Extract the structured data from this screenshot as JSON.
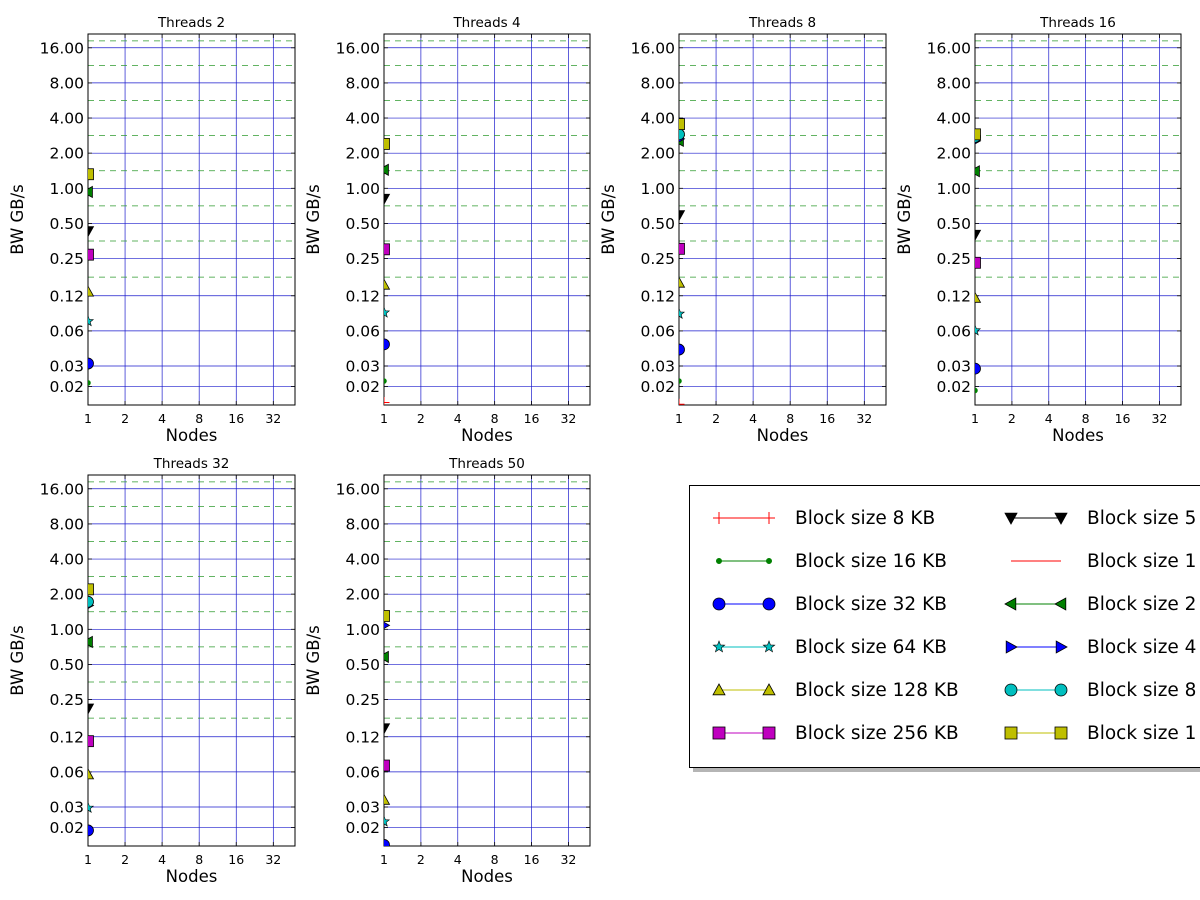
{
  "chart_data": [
    {
      "type": "scatter",
      "title": "Threads 2",
      "xlabel": "Nodes",
      "ylabel": "BW GB/s",
      "x_scale": "log2",
      "y_scale": "log2",
      "xlim": [
        1,
        48
      ],
      "ylim": [
        0.0139,
        21
      ],
      "x_ticks": [
        1,
        2,
        4,
        8,
        16,
        32
      ],
      "y_ticks": [
        0.02,
        0.03,
        0.06,
        0.12,
        0.25,
        0.5,
        1.0,
        2.0,
        4.0,
        8.0,
        16.0
      ],
      "y_tick_labels": [
        "0.02",
        "0.03",
        "0.06",
        "0.12",
        "0.25",
        "0.50",
        "1.00",
        "2.00",
        "4.00",
        "8.00",
        "16.00"
      ],
      "grid": true,
      "series": [
        {
          "id": "s16",
          "x": [
            1
          ],
          "y": [
            0.0215
          ]
        },
        {
          "id": "s32",
          "x": [
            1
          ],
          "y": [
            0.0315
          ]
        },
        {
          "id": "s64",
          "x": [
            1
          ],
          "y": [
            0.0725
          ]
        },
        {
          "id": "s128",
          "x": [
            1
          ],
          "y": [
            0.13
          ]
        },
        {
          "id": "s256",
          "x": [
            1
          ],
          "y": [
            0.27
          ]
        },
        {
          "id": "s512",
          "x": [
            1
          ],
          "y": [
            0.43
          ]
        },
        {
          "id": "s2m",
          "x": [
            1
          ],
          "y": [
            0.93
          ]
        },
        {
          "id": "s16m",
          "x": [
            1
          ],
          "y": [
            1.32
          ]
        }
      ]
    },
    {
      "type": "scatter",
      "title": "Threads 4",
      "xlabel": "Nodes",
      "ylabel": "BW GB/s",
      "x_scale": "log2",
      "y_scale": "log2",
      "xlim": [
        1,
        48
      ],
      "ylim": [
        0.0139,
        21
      ],
      "x_ticks": [
        1,
        2,
        4,
        8,
        16,
        32
      ],
      "y_ticks": [
        0.02,
        0.03,
        0.06,
        0.12,
        0.25,
        0.5,
        1.0,
        2.0,
        4.0,
        8.0,
        16.0
      ],
      "y_tick_labels": [
        "0.02",
        "0.03",
        "0.06",
        "0.12",
        "0.25",
        "0.50",
        "1.00",
        "2.00",
        "4.00",
        "8.00",
        "16.00"
      ],
      "grid": true,
      "series": [
        {
          "id": "s8",
          "x": [
            1
          ],
          "y": [
            0.0146
          ]
        },
        {
          "id": "s16",
          "x": [
            1
          ],
          "y": [
            0.0223
          ]
        },
        {
          "id": "s32",
          "x": [
            1
          ],
          "y": [
            0.046
          ]
        },
        {
          "id": "s64",
          "x": [
            1
          ],
          "y": [
            0.086
          ]
        },
        {
          "id": "s128",
          "x": [
            1
          ],
          "y": [
            0.149
          ]
        },
        {
          "id": "s256",
          "x": [
            1
          ],
          "y": [
            0.3
          ]
        },
        {
          "id": "s512",
          "x": [
            1
          ],
          "y": [
            0.815
          ]
        },
        {
          "id": "s2m",
          "x": [
            1
          ],
          "y": [
            1.44
          ]
        },
        {
          "id": "s16m",
          "x": [
            1
          ],
          "y": [
            2.4
          ]
        }
      ]
    },
    {
      "type": "scatter",
      "title": "Threads 8",
      "xlabel": "Nodes",
      "ylabel": "BW GB/s",
      "x_scale": "log2",
      "y_scale": "log2",
      "xlim": [
        1,
        48
      ],
      "ylim": [
        0.0139,
        21
      ],
      "x_ticks": [
        1,
        2,
        4,
        8,
        16,
        32
      ],
      "y_ticks": [
        0.02,
        0.03,
        0.06,
        0.12,
        0.25,
        0.5,
        1.0,
        2.0,
        4.0,
        8.0,
        16.0
      ],
      "y_tick_labels": [
        "0.02",
        "0.03",
        "0.06",
        "0.12",
        "0.25",
        "0.50",
        "1.00",
        "2.00",
        "4.00",
        "8.00",
        "16.00"
      ],
      "grid": true,
      "series": [
        {
          "id": "s8",
          "x": [
            1
          ],
          "y": [
            0.0141
          ]
        },
        {
          "id": "s16",
          "x": [
            1
          ],
          "y": [
            0.0223
          ]
        },
        {
          "id": "s32",
          "x": [
            1
          ],
          "y": [
            0.0415
          ]
        },
        {
          "id": "s64",
          "x": [
            1
          ],
          "y": [
            0.084
          ]
        },
        {
          "id": "s128",
          "x": [
            1
          ],
          "y": [
            0.155
          ]
        },
        {
          "id": "s256",
          "x": [
            1
          ],
          "y": [
            0.303
          ]
        },
        {
          "id": "s512",
          "x": [
            1
          ],
          "y": [
            0.59
          ]
        },
        {
          "id": "s2m",
          "x": [
            1
          ],
          "y": [
            2.55
          ]
        },
        {
          "id": "s4m",
          "x": [
            1
          ],
          "y": [
            2.65
          ]
        },
        {
          "id": "s8m",
          "x": [
            1
          ],
          "y": [
            2.9
          ]
        },
        {
          "id": "s16m",
          "x": [
            1
          ],
          "y": [
            3.55
          ]
        }
      ]
    },
    {
      "type": "scatter",
      "title": "Threads 16",
      "xlabel": "Nodes",
      "ylabel": "BW GB/s",
      "x_scale": "log2",
      "y_scale": "log2",
      "xlim": [
        1,
        48
      ],
      "ylim": [
        0.0139,
        21
      ],
      "x_ticks": [
        1,
        2,
        4,
        8,
        16,
        32
      ],
      "y_ticks": [
        0.02,
        0.03,
        0.06,
        0.12,
        0.25,
        0.5,
        1.0,
        2.0,
        4.0,
        8.0,
        16.0
      ],
      "y_tick_labels": [
        "0.02",
        "0.03",
        "0.06",
        "0.12",
        "0.25",
        "0.50",
        "1.00",
        "2.00",
        "4.00",
        "8.00",
        "16.00"
      ],
      "grid": true,
      "series": [
        {
          "id": "s16",
          "x": [
            1
          ],
          "y": [
            0.0185
          ]
        },
        {
          "id": "s32",
          "x": [
            1
          ],
          "y": [
            0.0285
          ]
        },
        {
          "id": "s64",
          "x": [
            1
          ],
          "y": [
            0.0605
          ]
        },
        {
          "id": "s128",
          "x": [
            1
          ],
          "y": [
            0.115
          ]
        },
        {
          "id": "s256",
          "x": [
            1
          ],
          "y": [
            0.23
          ]
        },
        {
          "id": "s512",
          "x": [
            1
          ],
          "y": [
            0.4
          ]
        },
        {
          "id": "s2m",
          "x": [
            1
          ],
          "y": [
            1.4
          ]
        },
        {
          "id": "s4m",
          "x": [
            1
          ],
          "y": [
            2.55
          ]
        },
        {
          "id": "s8m",
          "x": [
            1
          ],
          "y": [
            2.75
          ]
        },
        {
          "id": "s16m",
          "x": [
            1
          ],
          "y": [
            2.9
          ]
        }
      ]
    },
    {
      "type": "scatter",
      "title": "Threads 32",
      "xlabel": "Nodes",
      "ylabel": "BW GB/s",
      "x_scale": "log2",
      "y_scale": "log2",
      "xlim": [
        1,
        48
      ],
      "ylim": [
        0.0139,
        21
      ],
      "x_ticks": [
        1,
        2,
        4,
        8,
        16,
        32
      ],
      "y_ticks": [
        0.02,
        0.03,
        0.06,
        0.12,
        0.25,
        0.5,
        1.0,
        2.0,
        4.0,
        8.0,
        16.0
      ],
      "y_tick_labels": [
        "0.02",
        "0.03",
        "0.06",
        "0.12",
        "0.25",
        "0.50",
        "1.00",
        "2.00",
        "4.00",
        "8.00",
        "16.00"
      ],
      "grid": true,
      "series": [
        {
          "id": "s32",
          "x": [
            1
          ],
          "y": [
            0.0189
          ]
        },
        {
          "id": "s64",
          "x": [
            1
          ],
          "y": [
            0.0295
          ]
        },
        {
          "id": "s128",
          "x": [
            1
          ],
          "y": [
            0.057
          ]
        },
        {
          "id": "s256",
          "x": [
            1
          ],
          "y": [
            0.11
          ]
        },
        {
          "id": "s512",
          "x": [
            1
          ],
          "y": [
            0.21
          ]
        },
        {
          "id": "s2m",
          "x": [
            1
          ],
          "y": [
            0.78
          ]
        },
        {
          "id": "s4m",
          "x": [
            1
          ],
          "y": [
            1.6
          ]
        },
        {
          "id": "s8m",
          "x": [
            1
          ],
          "y": [
            1.72
          ]
        },
        {
          "id": "s16m",
          "x": [
            1
          ],
          "y": [
            2.2
          ]
        }
      ]
    },
    {
      "type": "scatter",
      "title": "Threads 50",
      "xlabel": "Nodes",
      "ylabel": "BW GB/s",
      "x_scale": "log2",
      "y_scale": "log2",
      "xlim": [
        1,
        48
      ],
      "ylim": [
        0.0139,
        21
      ],
      "x_ticks": [
        1,
        2,
        4,
        8,
        16,
        32
      ],
      "y_ticks": [
        0.02,
        0.03,
        0.06,
        0.12,
        0.25,
        0.5,
        1.0,
        2.0,
        4.0,
        8.0,
        16.0
      ],
      "y_tick_labels": [
        "0.02",
        "0.03",
        "0.06",
        "0.12",
        "0.25",
        "0.50",
        "1.00",
        "2.00",
        "4.00",
        "8.00",
        "16.00"
      ],
      "grid": true,
      "series": [
        {
          "id": "s32",
          "x": [
            1
          ],
          "y": [
            0.0142
          ]
        },
        {
          "id": "s64",
          "x": [
            1
          ],
          "y": [
            0.0225
          ]
        },
        {
          "id": "s128",
          "x": [
            1
          ],
          "y": [
            0.0345
          ]
        },
        {
          "id": "s256",
          "x": [
            1
          ],
          "y": [
            0.068
          ]
        },
        {
          "id": "s512",
          "x": [
            1
          ],
          "y": [
            0.142
          ]
        },
        {
          "id": "s2m",
          "x": [
            1
          ],
          "y": [
            0.58
          ]
        },
        {
          "id": "s4m",
          "x": [
            1
          ],
          "y": [
            1.08
          ]
        },
        {
          "id": "s16m",
          "x": [
            1
          ],
          "y": [
            1.3
          ]
        }
      ]
    }
  ],
  "legend": {
    "placement": "bottom-right",
    "columns": 2,
    "items": [
      {
        "id": "s8",
        "label": "Block size 8 KB",
        "marker": "plus",
        "color": "#ff0000"
      },
      {
        "id": "s16",
        "label": "Block size 16 KB",
        "marker": "point",
        "color": "#008000"
      },
      {
        "id": "s32",
        "label": "Block size 32 KB",
        "marker": "circle",
        "color": "#0000ff"
      },
      {
        "id": "s64",
        "label": "Block size 64 KB",
        "marker": "star",
        "color": "#00bfbf"
      },
      {
        "id": "s128",
        "label": "Block size 128 KB",
        "marker": "triangle-up",
        "color": "#bfbf00"
      },
      {
        "id": "s256",
        "label": "Block size 256 KB",
        "marker": "square",
        "color": "#bf00bf"
      },
      {
        "id": "s512",
        "label": "Block size 5",
        "marker": "triangle-down",
        "color": "#000000"
      },
      {
        "id": "s1m",
        "label": "Block size 1",
        "marker": "none",
        "color": "#ff0000"
      },
      {
        "id": "s2m",
        "label": "Block size 2",
        "marker": "triangle-left",
        "color": "#008000"
      },
      {
        "id": "s4m",
        "label": "Block size 4",
        "marker": "triangle-right",
        "color": "#0000ff"
      },
      {
        "id": "s8m",
        "label": "Block size 8",
        "marker": "circle",
        "color": "#00bfbf"
      },
      {
        "id": "s16m",
        "label": "Block size 1",
        "marker": "square",
        "color": "#bfbf00"
      }
    ]
  }
}
